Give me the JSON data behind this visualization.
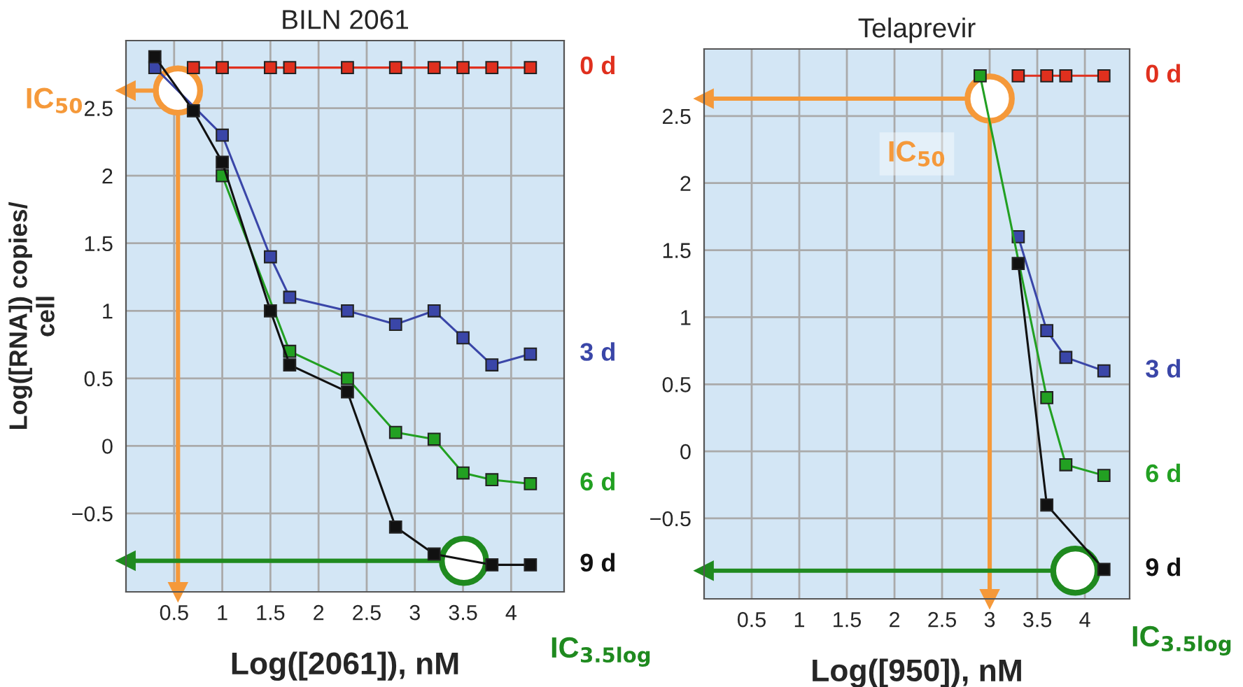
{
  "chart_data": [
    {
      "type": "line",
      "title": "BILN 2061",
      "xlabel": "Log([2061]), nM",
      "ylabel": "Log([RNA]) copies/\ncell",
      "xlim": [
        0,
        4.55
      ],
      "ylim": [
        -1.08,
        3.0
      ],
      "xticks": [
        0.5,
        1,
        1.5,
        2,
        2.5,
        3,
        3.5,
        4
      ],
      "yticks": [
        {
          "value": -0.5,
          "label": "−0.5"
        },
        0,
        0.5,
        1,
        1.5,
        2,
        2.5
      ],
      "grid": true,
      "marker": "square",
      "line_style": "solid",
      "series": [
        {
          "name": "0 d",
          "color": "#e0301e",
          "x": [
            0.7,
            1.0,
            1.5,
            1.7,
            2.3,
            2.8,
            3.2,
            3.5,
            3.8,
            4.2
          ],
          "values": [
            2.8,
            2.8,
            2.8,
            2.8,
            2.8,
            2.8,
            2.8,
            2.8,
            2.8,
            2.8
          ]
        },
        {
          "name": "3 d",
          "color": "#3a46a8",
          "x": [
            0.3,
            1.0,
            1.5,
            1.7,
            2.3,
            2.8,
            3.2,
            3.5,
            3.8,
            4.2
          ],
          "values": [
            2.8,
            2.3,
            1.4,
            1.1,
            1.0,
            0.9,
            1.0,
            0.8,
            0.6,
            0.68
          ]
        },
        {
          "name": "6 d",
          "color": "#22a022",
          "x": [
            1.0,
            1.7,
            2.3,
            2.8,
            3.2,
            3.5,
            3.8,
            4.2
          ],
          "values": [
            2.0,
            0.7,
            0.5,
            0.1,
            0.05,
            -0.2,
            -0.25,
            -0.28
          ]
        },
        {
          "name": "9 d",
          "color": "#111111",
          "x": [
            0.3,
            0.7,
            1.0,
            1.5,
            1.7,
            2.3,
            2.8,
            3.2,
            3.8,
            4.2
          ],
          "values": [
            2.88,
            2.48,
            2.1,
            1.0,
            0.6,
            0.4,
            -0.6,
            -0.8,
            -0.88,
            -0.88
          ]
        },
        {
          "type": "scatter",
          "marker": "circle",
          "color": "#f5993a",
          "x": [
            0.54
          ],
          "values": [
            2.63
          ]
        },
        {
          "type": "scatter",
          "marker": "circle",
          "color": "#1f8a1f",
          "x": [
            3.51
          ],
          "values": [
            -0.85
          ]
        }
      ],
      "ref_lines": [
        {
          "axis": "y",
          "value": 2.63,
          "color": "#f5993a"
        },
        {
          "axis": "x",
          "value": 0.54,
          "color": "#f5993a"
        },
        {
          "axis": "y",
          "value": -0.85,
          "color": "#1f8a1f"
        }
      ],
      "annotations": [
        "IC$_{50}$",
        "IC$_{3.5log}$"
      ]
    },
    {
      "type": "line",
      "title": "Telaprevir",
      "xlabel": "Log([950]), nM",
      "xlim": [
        0,
        4.47
      ],
      "ylim": [
        -1.1,
        3.0
      ],
      "xticks": [
        0.5,
        1,
        1.5,
        2,
        2.5,
        3,
        3.5,
        4
      ],
      "yticks": [
        {
          "value": -0.5,
          "label": "−0.5"
        },
        0,
        0.5,
        1,
        1.5,
        2,
        2.5
      ],
      "grid": true,
      "marker": "square",
      "line_style": "solid",
      "series": [
        {
          "name": "0 d",
          "color": "#e0301e",
          "x": [
            3.3,
            3.6,
            3.8,
            4.2
          ],
          "values": [
            2.8,
            2.8,
            2.8,
            2.8
          ]
        },
        {
          "name": "3 d",
          "color": "#3a46a8",
          "x": [
            3.3,
            3.6,
            3.8,
            4.2
          ],
          "values": [
            1.6,
            0.9,
            0.7,
            0.6
          ]
        },
        {
          "name": "6 d",
          "color": "#22a022",
          "x": [
            2.9,
            3.6,
            3.8,
            4.2
          ],
          "values": [
            2.8,
            0.4,
            -0.1,
            -0.18
          ]
        },
        {
          "name": "9 d",
          "color": "#111111",
          "x": [
            3.3,
            3.6,
            4.2
          ],
          "values": [
            1.4,
            -0.4,
            -0.88
          ]
        },
        {
          "type": "scatter",
          "marker": "circle",
          "color": "#f5993a",
          "x": [
            3.0
          ],
          "values": [
            2.63
          ]
        },
        {
          "type": "scatter",
          "marker": "circle",
          "color": "#1f8a1f",
          "x": [
            3.9
          ],
          "values": [
            -0.89
          ]
        }
      ],
      "ref_lines": [
        {
          "axis": "y",
          "value": 2.63,
          "color": "#f5993a"
        },
        {
          "axis": "x",
          "value": 3.0,
          "color": "#f5993a"
        },
        {
          "axis": "y",
          "value": -0.89,
          "color": "#1f8a1f"
        }
      ],
      "annotations": [
        "IC$_{50}$",
        "IC$_{3.5log}$"
      ]
    }
  ]
}
